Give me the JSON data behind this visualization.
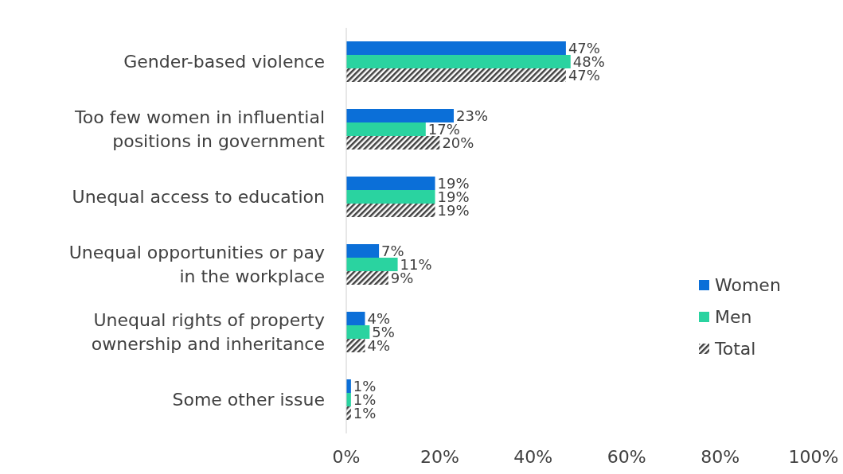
{
  "chart_data": {
    "type": "bar",
    "orientation": "horizontal",
    "categories": [
      "Gender-based violence",
      "Too few women in influential positions in government",
      "Unequal access to education",
      "Unequal opportunities or pay in the workplace",
      "Unequal rights of property ownership and inheritance",
      "Some other issue"
    ],
    "series": [
      {
        "name": "Women",
        "color": "#0b6fd8",
        "values": [
          47,
          23,
          19,
          7,
          4,
          1
        ],
        "value_labels": [
          "47%",
          "23%",
          "19%",
          "7%",
          "4%",
          "1%"
        ]
      },
      {
        "name": "Men",
        "color": "#2ad3a0",
        "values": [
          48,
          17,
          19,
          11,
          5,
          1
        ],
        "value_labels": [
          "48%",
          "17%",
          "19%",
          "11%",
          "5%",
          "1%"
        ]
      },
      {
        "name": "Total",
        "color": "#404040",
        "values": [
          47,
          20,
          19,
          9,
          4,
          1
        ],
        "value_labels": [
          "47%",
          "20%",
          "19%",
          "9%",
          "4%",
          "1%"
        ]
      }
    ],
    "xlim": [
      0,
      100
    ],
    "xticks": [
      {
        "value": 0,
        "label": "0%"
      },
      {
        "value": 20,
        "label": "20%"
      },
      {
        "value": 40,
        "label": "40%"
      },
      {
        "value": 60,
        "label": "60%"
      },
      {
        "value": 80,
        "label": "80%"
      },
      {
        "value": 100,
        "label": "100%"
      }
    ],
    "legend": "right",
    "grid": false
  }
}
